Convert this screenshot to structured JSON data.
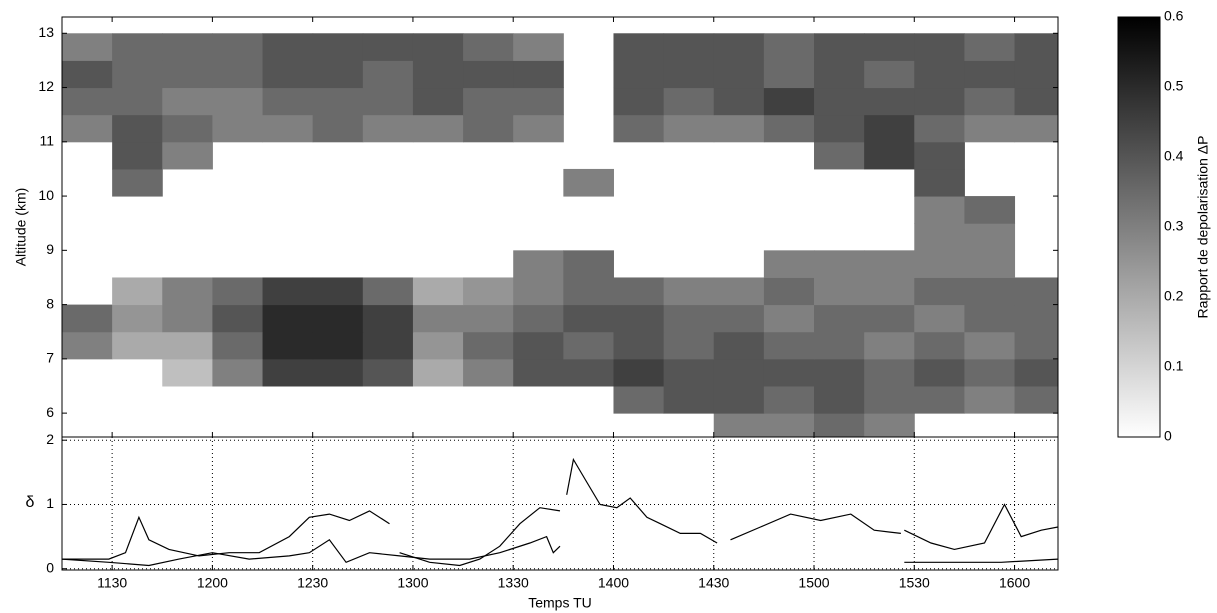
{
  "chart_data": [
    {
      "type": "heatmap",
      "ylabel": "Altitude (km)",
      "xlim": [
        675,
        973
      ],
      "ylim": [
        5.56,
        13.3
      ],
      "yticks": [
        6,
        7,
        8,
        9,
        10,
        11,
        12,
        13
      ],
      "xbins": [
        675,
        690,
        705,
        720,
        735,
        750,
        765,
        780,
        795,
        810,
        825,
        840,
        855,
        870,
        885,
        900,
        915,
        930,
        945,
        960,
        975
      ],
      "ybins": [
        5.5,
        6,
        6.5,
        7,
        7.5,
        8,
        8.5,
        9,
        9.5,
        10,
        10.5,
        11,
        11.5,
        12,
        12.5,
        13,
        13.5
      ],
      "z": [
        [
          null,
          null,
          null,
          null,
          null,
          null,
          null,
          null,
          null,
          null,
          null,
          null,
          null,
          0.3,
          0.3,
          0.35,
          0.3,
          null,
          null,
          null
        ],
        [
          null,
          null,
          null,
          null,
          null,
          null,
          null,
          null,
          null,
          null,
          null,
          0.35,
          0.4,
          0.4,
          0.35,
          0.4,
          0.35,
          0.35,
          0.3,
          0.35
        ],
        [
          null,
          null,
          0.15,
          0.3,
          0.45,
          0.45,
          0.4,
          0.2,
          0.3,
          0.4,
          0.4,
          0.45,
          0.4,
          0.4,
          0.4,
          0.4,
          0.35,
          0.4,
          0.35,
          0.4
        ],
        [
          0.3,
          0.2,
          0.2,
          0.35,
          0.5,
          0.5,
          0.45,
          0.25,
          0.35,
          0.4,
          0.35,
          0.4,
          0.35,
          0.4,
          0.35,
          0.35,
          0.3,
          0.35,
          0.3,
          0.35
        ],
        [
          0.35,
          0.25,
          0.3,
          0.4,
          0.5,
          0.5,
          0.45,
          0.3,
          0.3,
          0.35,
          0.4,
          0.4,
          0.35,
          0.35,
          0.3,
          0.35,
          0.35,
          0.3,
          0.35,
          0.35
        ],
        [
          null,
          0.2,
          0.3,
          0.35,
          0.45,
          0.45,
          0.35,
          0.2,
          0.25,
          0.3,
          0.35,
          0.35,
          0.3,
          0.3,
          0.35,
          0.3,
          0.3,
          0.35,
          0.35,
          0.35
        ],
        [
          null,
          null,
          null,
          null,
          null,
          null,
          null,
          null,
          null,
          0.3,
          0.35,
          null,
          null,
          null,
          0.3,
          0.3,
          0.3,
          0.3,
          0.3,
          null
        ],
        [
          null,
          null,
          null,
          null,
          null,
          null,
          null,
          null,
          null,
          null,
          null,
          null,
          null,
          null,
          null,
          null,
          null,
          0.3,
          0.3,
          null
        ],
        [
          null,
          null,
          null,
          null,
          null,
          null,
          null,
          null,
          null,
          null,
          null,
          null,
          null,
          null,
          null,
          null,
          null,
          0.3,
          0.35,
          null
        ],
        [
          null,
          0.35,
          null,
          null,
          null,
          null,
          null,
          null,
          null,
          null,
          0.3,
          null,
          null,
          null,
          null,
          null,
          null,
          0.4,
          null,
          null
        ],
        [
          null,
          0.4,
          0.3,
          null,
          null,
          null,
          null,
          null,
          null,
          null,
          null,
          null,
          null,
          null,
          null,
          0.35,
          0.45,
          0.4,
          null,
          null
        ],
        [
          0.3,
          0.4,
          0.35,
          0.3,
          0.3,
          0.35,
          0.3,
          0.3,
          0.35,
          0.3,
          null,
          0.35,
          0.3,
          0.3,
          0.35,
          0.4,
          0.45,
          0.35,
          0.3,
          0.3
        ],
        [
          0.35,
          0.35,
          0.3,
          0.3,
          0.35,
          0.35,
          0.35,
          0.4,
          0.35,
          0.35,
          null,
          0.4,
          0.35,
          0.4,
          0.45,
          0.4,
          0.4,
          0.4,
          0.35,
          0.4
        ],
        [
          0.4,
          0.35,
          0.35,
          0.35,
          0.4,
          0.4,
          0.35,
          0.4,
          0.4,
          0.4,
          null,
          0.4,
          0.4,
          0.4,
          0.35,
          0.4,
          0.35,
          0.4,
          0.4,
          0.4
        ],
        [
          0.3,
          0.35,
          0.35,
          0.35,
          0.4,
          0.4,
          0.4,
          0.4,
          0.35,
          0.3,
          null,
          0.4,
          0.4,
          0.4,
          0.35,
          0.4,
          0.4,
          0.4,
          0.35,
          0.4
        ],
        [
          null,
          null,
          null,
          null,
          null,
          null,
          null,
          null,
          null,
          null,
          null,
          null,
          null,
          null,
          null,
          null,
          null,
          null,
          null,
          null
        ]
      ],
      "clim": [
        0,
        0.6
      ],
      "colorbar_label": "Rapport de depolarisation ΔP",
      "colorbar_ticks": [
        0,
        0.1,
        0.2,
        0.3,
        0.4,
        0.5,
        0.6
      ]
    },
    {
      "type": "line",
      "xlabel": "Temps TU",
      "ylabel": "δ",
      "xlim": [
        675,
        973
      ],
      "ylim": [
        -0.02,
        2.05
      ],
      "xticks": [
        {
          "value": 690,
          "label": "1130"
        },
        {
          "value": 720,
          "label": "1200"
        },
        {
          "value": 750,
          "label": "1230"
        },
        {
          "value": 780,
          "label": "1300"
        },
        {
          "value": 810,
          "label": "1330"
        },
        {
          "value": 840,
          "label": "1400"
        },
        {
          "value": 870,
          "label": "1430"
        },
        {
          "value": 900,
          "label": "1500"
        },
        {
          "value": 930,
          "label": "1530"
        },
        {
          "value": 960,
          "label": "1600"
        }
      ],
      "yticks": [
        0,
        1,
        2
      ],
      "grid": true,
      "series": [
        {
          "color": "#000000",
          "x": [
            675,
            689,
            694,
            698,
            701,
            707,
            716,
            725,
            734,
            743,
            749,
            755,
            761,
            767,
            773,
            774,
            776,
            785,
            794,
            800,
            806,
            812,
            818,
            824,
            825,
            826,
            828,
            832,
            836,
            841,
            845,
            850,
            854,
            860,
            866,
            871,
            873,
            875,
            884,
            893,
            902,
            911,
            918,
            926,
            926.5,
            927,
            935,
            942,
            951,
            957,
            962,
            968,
            973
          ],
          "values": [
            0.15,
            0.15,
            0.25,
            0.8,
            0.45,
            0.3,
            0.2,
            0.25,
            0.25,
            0.5,
            0.8,
            0.85,
            0.75,
            0.9,
            0.7,
            null,
            0.25,
            0.1,
            0.05,
            0.15,
            0.35,
            0.7,
            0.95,
            0.9,
            null,
            1.15,
            1.7,
            1.35,
            1.0,
            0.95,
            1.1,
            0.8,
            0.7,
            0.55,
            0.55,
            0.4,
            null,
            0.45,
            0.65,
            0.85,
            0.75,
            0.85,
            0.6,
            0.55,
            null,
            0.6,
            0.4,
            0.3,
            0.4,
            1.0,
            0.5,
            0.6,
            0.65
          ]
        },
        {
          "color": "#000000",
          "x": [
            675,
            689,
            701,
            710,
            720,
            731,
            743,
            749,
            755,
            760,
            767,
            776,
            785,
            797,
            806,
            815,
            820,
            822,
            824,
            880,
            927,
            940,
            956,
            973
          ],
          "values": [
            0.15,
            0.1,
            0.05,
            0.15,
            0.25,
            0.15,
            0.2,
            0.25,
            0.45,
            0.1,
            0.25,
            0.2,
            0.15,
            0.15,
            0.25,
            0.4,
            0.5,
            0.25,
            0.35,
            null,
            0.1,
            0.1,
            0.1,
            0.15
          ]
        }
      ]
    }
  ]
}
